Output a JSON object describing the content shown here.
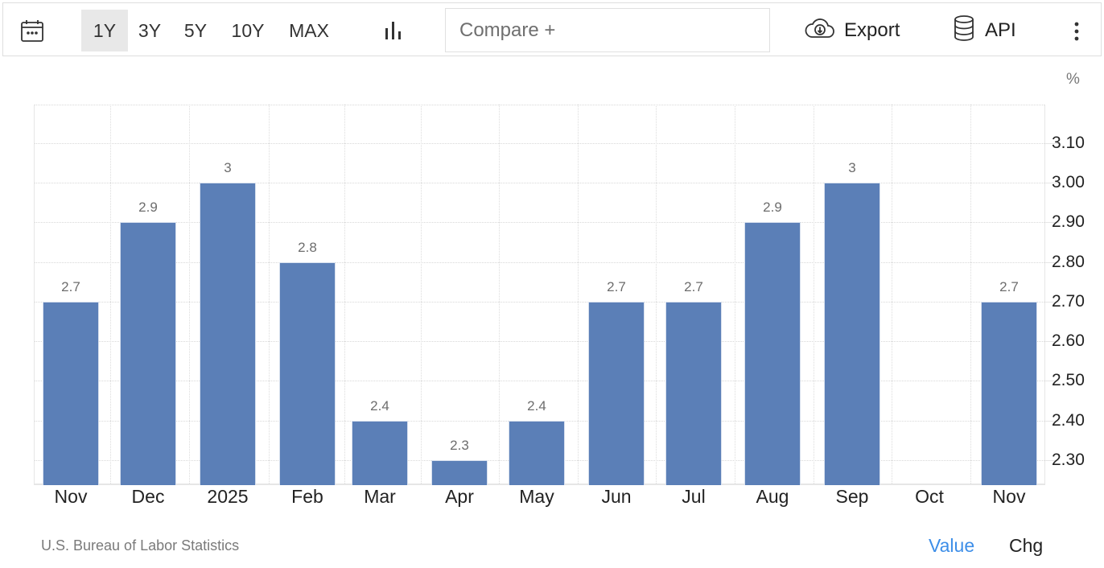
{
  "toolbar": {
    "calendar_icon": "calendar-icon",
    "ranges": [
      {
        "label": "1Y",
        "active": true
      },
      {
        "label": "3Y",
        "active": false
      },
      {
        "label": "5Y",
        "active": false
      },
      {
        "label": "10Y",
        "active": false
      },
      {
        "label": "MAX",
        "active": false
      }
    ],
    "chart_type_icon": "bar-chart-icon",
    "compare_placeholder": "Compare +",
    "export_label": "Export",
    "export_icon": "cloud-download-icon",
    "api_label": "API",
    "api_icon": "database-icon",
    "more_icon": "vertical-ellipsis-icon"
  },
  "chart": {
    "unit": "%",
    "source": "U.S. Bureau of Labor Statistics",
    "toggle": {
      "value_label": "Value",
      "chg_label": "Chg",
      "active": "Value"
    },
    "colors": {
      "bar": "#5b7fb7",
      "active_toggle": "#3d8ee8"
    }
  },
  "chart_data": {
    "type": "bar",
    "title": "",
    "xlabel": "",
    "ylabel": "%",
    "categories": [
      "Nov",
      "Dec",
      "2025",
      "Feb",
      "Mar",
      "Apr",
      "May",
      "Jun",
      "Jul",
      "Aug",
      "Sep",
      "Oct",
      "Nov"
    ],
    "values": [
      2.7,
      2.9,
      3.0,
      2.8,
      2.4,
      2.3,
      2.4,
      2.7,
      2.7,
      2.9,
      3.0,
      null,
      2.7
    ],
    "data_labels": [
      "2.7",
      "2.9",
      "3",
      "2.8",
      "2.4",
      "2.3",
      "2.4",
      "2.7",
      "2.7",
      "2.9",
      "3",
      "",
      "2.7"
    ],
    "y_ticks": [
      "3.10",
      "3.00",
      "2.90",
      "2.80",
      "2.70",
      "2.60",
      "2.50",
      "2.40",
      "2.30"
    ],
    "ylim": [
      2.24,
      3.19
    ],
    "y_axis_position": "right",
    "grid": true,
    "legend": "none"
  }
}
